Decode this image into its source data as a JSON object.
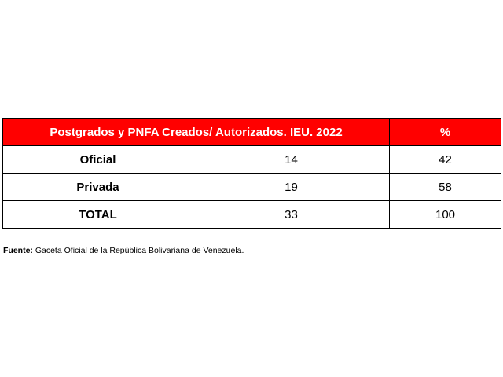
{
  "table": {
    "header": {
      "title": "Postgrados y PNFA Creados/ Autorizados. IEU. 2022",
      "pct": "%"
    },
    "rows": [
      {
        "label": "Oficial",
        "value": "14",
        "pct": "42"
      },
      {
        "label": "Privada",
        "value": "19",
        "pct": "58"
      },
      {
        "label": "TOTAL",
        "value": "33",
        "pct": "100"
      }
    ]
  },
  "source": {
    "label": "Fuente:",
    "text": " Gaceta Oficial de la República Bolivariana de Venezuela."
  },
  "colors": {
    "header_bg": "#ff0000",
    "header_text": "#ffffff"
  }
}
